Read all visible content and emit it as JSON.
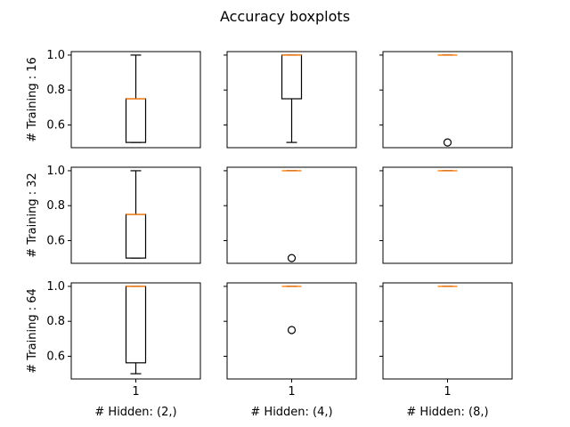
{
  "figure": {
    "title": "Accuracy boxplots",
    "row_labels": [
      "# Training : 16",
      "# Training : 32",
      "# Training : 64"
    ],
    "col_labels": [
      "# Hidden: (2,)",
      "# Hidden: (4,)",
      "# Hidden: (8,)"
    ],
    "x_tick_label": "1",
    "y_ticks": [
      "0.6",
      "0.8",
      "1.0"
    ],
    "colors": {
      "box": "#000000",
      "median": "#ff7f0e",
      "background": "#ffffff"
    }
  },
  "chart_data": {
    "type": "box",
    "title": "Accuracy boxplots",
    "ylim": [
      0.47,
      1.02
    ],
    "y_ticks": [
      0.6,
      0.8,
      1.0
    ],
    "x_ticks": [
      1
    ],
    "sharey": true,
    "sharex": true,
    "grid": false,
    "rows": [
      "# Training : 16",
      "# Training : 32",
      "# Training : 64"
    ],
    "cols": [
      "# Hidden: (2,)",
      "# Hidden: (4,)",
      "# Hidden: (8,)"
    ],
    "panels": [
      {
        "row": 0,
        "col": 0,
        "whisker_low": 0.5,
        "q1": 0.5,
        "median": 0.75,
        "q3": 0.75,
        "whisker_high": 1.0,
        "outliers": []
      },
      {
        "row": 0,
        "col": 1,
        "whisker_low": 0.5,
        "q1": 0.75,
        "median": 1.0,
        "q3": 1.0,
        "whisker_high": 1.0,
        "outliers": []
      },
      {
        "row": 0,
        "col": 2,
        "whisker_low": 1.0,
        "q1": 1.0,
        "median": 1.0,
        "q3": 1.0,
        "whisker_high": 1.0,
        "outliers": [
          0.5
        ]
      },
      {
        "row": 1,
        "col": 0,
        "whisker_low": 0.5,
        "q1": 0.5,
        "median": 0.75,
        "q3": 0.75,
        "whisker_high": 1.0,
        "outliers": []
      },
      {
        "row": 1,
        "col": 1,
        "whisker_low": 1.0,
        "q1": 1.0,
        "median": 1.0,
        "q3": 1.0,
        "whisker_high": 1.0,
        "outliers": [
          0.5
        ]
      },
      {
        "row": 1,
        "col": 2,
        "whisker_low": 1.0,
        "q1": 1.0,
        "median": 1.0,
        "q3": 1.0,
        "whisker_high": 1.0,
        "outliers": []
      },
      {
        "row": 2,
        "col": 0,
        "whisker_low": 0.5,
        "q1": 0.5625,
        "median": 1.0,
        "q3": 1.0,
        "whisker_high": 1.0,
        "outliers": []
      },
      {
        "row": 2,
        "col": 1,
        "whisker_low": 1.0,
        "q1": 1.0,
        "median": 1.0,
        "q3": 1.0,
        "whisker_high": 1.0,
        "outliers": [
          0.75
        ]
      },
      {
        "row": 2,
        "col": 2,
        "whisker_low": 1.0,
        "q1": 1.0,
        "median": 1.0,
        "q3": 1.0,
        "whisker_high": 1.0,
        "outliers": []
      }
    ]
  }
}
